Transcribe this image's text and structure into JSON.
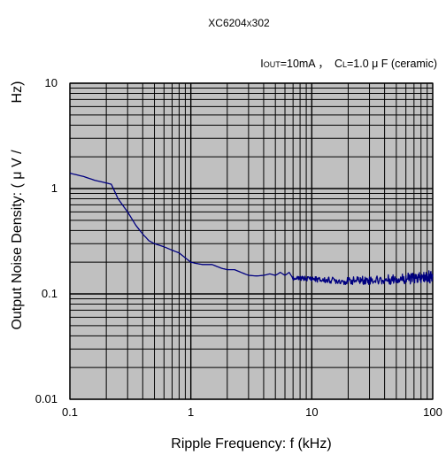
{
  "chart_data": {
    "type": "line",
    "title": "XC6204",
    "title_part": "X",
    "title_suffix": "302",
    "condition": {
      "i_prefix": "I",
      "i_sub": "OUT",
      "i_value": "=10mA ，",
      "c_prefix": "C",
      "c_sub": "L",
      "c_value": "=1.0 μ F  (ceramic)"
    },
    "xlabel": "Ripple Frequency: f (kHz)",
    "ylabel_left": "Output Noise Density: ( μ V /",
    "ylabel_right": "Hz)",
    "x_scale": "log",
    "y_scale": "log",
    "xlim": [
      0.1,
      100
    ],
    "ylim": [
      0.01,
      10
    ],
    "x_ticks": [
      {
        "value": 0.1,
        "label": "0.1"
      },
      {
        "value": 1,
        "label": "1"
      },
      {
        "value": 10,
        "label": "10"
      },
      {
        "value": 100,
        "label": "100"
      }
    ],
    "y_ticks": [
      {
        "value": 0.01,
        "label": "0.01"
      },
      {
        "value": 0.1,
        "label": "0.1"
      },
      {
        "value": 1,
        "label": "1"
      },
      {
        "value": 10,
        "label": "10"
      }
    ],
    "grid": true,
    "series": [
      {
        "color": "#000080",
        "noise_from": 7,
        "x": [
          0.1,
          0.13,
          0.16,
          0.2,
          0.22,
          0.25,
          0.3,
          0.35,
          0.4,
          0.45,
          0.5,
          0.6,
          0.7,
          0.8,
          0.9,
          1.0,
          1.1,
          1.25,
          1.5,
          1.8,
          2.0,
          2.3,
          2.6,
          3.0,
          3.5,
          4.0,
          4.5,
          5.0,
          5.5,
          6.0,
          6.5,
          7.0,
          8.0,
          10,
          12,
          15,
          20,
          25,
          30,
          40,
          50,
          60,
          70,
          80,
          90,
          100
        ],
        "y": [
          1.4,
          1.3,
          1.2,
          1.13,
          1.1,
          0.8,
          0.6,
          0.45,
          0.37,
          0.32,
          0.3,
          0.28,
          0.26,
          0.245,
          0.22,
          0.2,
          0.195,
          0.19,
          0.19,
          0.175,
          0.17,
          0.17,
          0.16,
          0.15,
          0.148,
          0.15,
          0.155,
          0.15,
          0.16,
          0.15,
          0.16,
          0.14,
          0.14,
          0.14,
          0.135,
          0.135,
          0.132,
          0.135,
          0.135,
          0.135,
          0.14,
          0.14,
          0.14,
          0.14,
          0.145,
          0.145
        ]
      }
    ]
  }
}
